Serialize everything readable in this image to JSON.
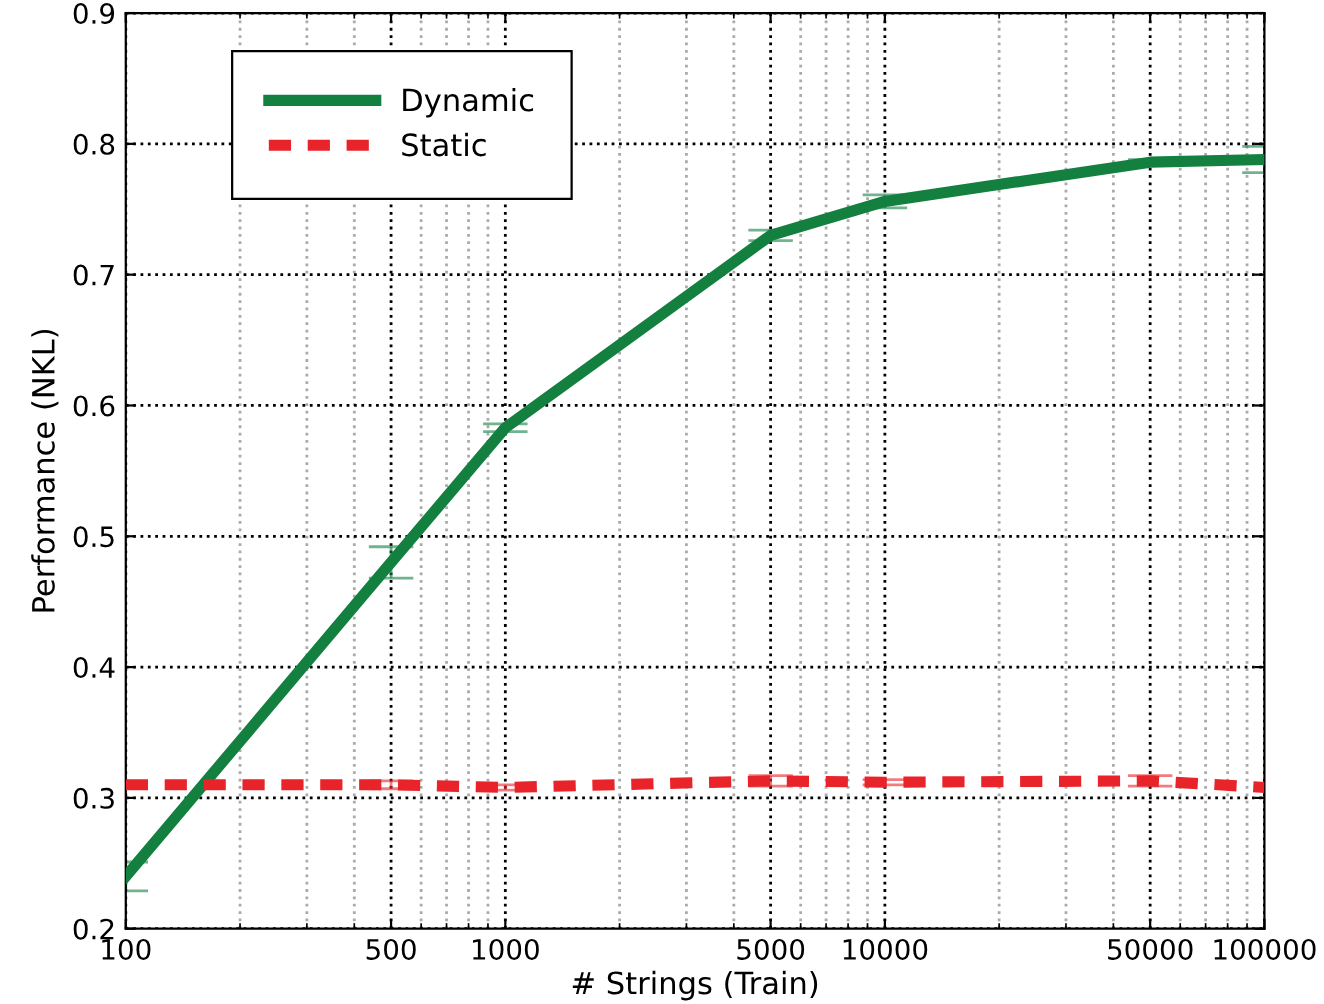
{
  "chart_data": {
    "type": "line",
    "xlabel": "# Strings (Train)",
    "ylabel": "Performance (NKL)",
    "x": [
      100,
      500,
      1000,
      5000,
      10000,
      50000,
      100000
    ],
    "series": [
      {
        "name": "Dynamic",
        "color": "#138040",
        "line_style": "solid",
        "values": [
          0.24,
          0.48,
          0.583,
          0.73,
          0.756,
          0.786,
          0.788
        ],
        "errors": [
          0.011,
          0.012,
          0.003,
          0.004,
          0.005,
          0.002,
          0.01
        ]
      },
      {
        "name": "Static",
        "color": "#e8242a",
        "line_style": "dashed",
        "values": [
          0.31,
          0.31,
          0.308,
          0.313,
          0.312,
          0.313,
          0.308
        ],
        "errors": [
          null,
          0.003,
          0.002,
          0.004,
          0.002,
          0.004,
          null
        ]
      }
    ],
    "log": "x",
    "xlim": [
      100,
      100000
    ],
    "xticks": [
      100,
      500,
      1000,
      5000,
      10000,
      50000,
      100000
    ],
    "ylim": [
      0.2,
      0.9
    ],
    "yticks": [
      0.2,
      0.3,
      0.4,
      0.5,
      0.6,
      0.7,
      0.8,
      0.9
    ],
    "grid": true,
    "legend": "top left"
  }
}
